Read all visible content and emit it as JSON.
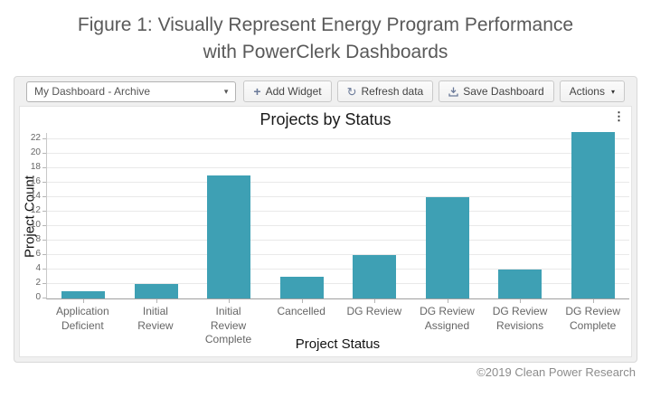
{
  "figure_title": {
    "line1": "Figure 1: Visually Represent Energy Program Performance",
    "line2": "with PowerClerk Dashboards"
  },
  "toolbar": {
    "dashboard_select": {
      "value": "My Dashboard - Archive"
    },
    "add_widget_label": "Add Widget",
    "refresh_label": "Refresh data",
    "save_label": "Save Dashboard",
    "actions_label": "Actions"
  },
  "icons": {
    "add": "+",
    "refresh": "↻",
    "caret_down": "▾",
    "kebab": "⋮"
  },
  "chart_data": {
    "type": "bar",
    "title": "Projects by Status",
    "xlabel": "Project Status",
    "ylabel": "Project Count",
    "categories": [
      "Application\nDeficient",
      "Initial\nReview",
      "Initial\nReview\nComplete",
      "Cancelled",
      "DG Review",
      "DG Review\nAssigned",
      "DG Review\nRevisions",
      "DG Review\nComplete"
    ],
    "values": [
      1,
      2,
      17,
      3,
      6,
      14,
      4,
      23
    ],
    "ylim": [
      0,
      22
    ],
    "ytick_step": 2,
    "bar_color": "#3EA0B4",
    "grid": true,
    "legend": "none"
  },
  "colors": {
    "bar_accent": "#3EA0B4",
    "icon_accent": "#6b7a99"
  },
  "footer": {
    "credit": "©2019 Clean Power Research"
  }
}
